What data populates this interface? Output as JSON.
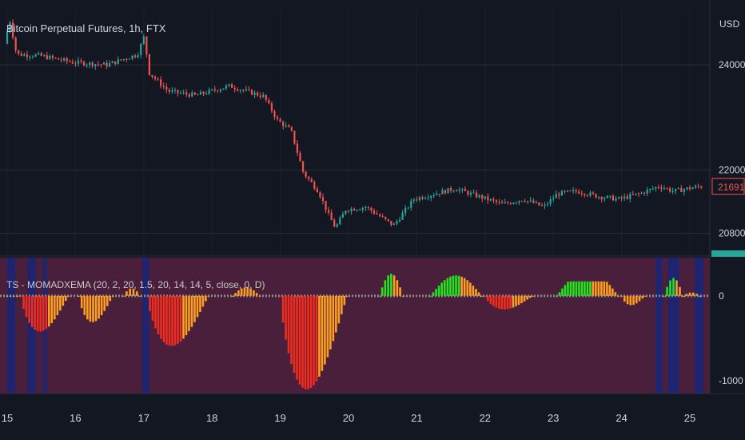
{
  "header": {
    "title": "Bitcoin Perpetual Futures, 1h, FTX",
    "currency": "USD"
  },
  "indicator": {
    "label": "TS - MOMADXEMA (20, 2, 20, 1.5, 20, 14, 14, 5, close, 0, D)"
  },
  "colors": {
    "background": "#131722",
    "up_candle": "#26a69a",
    "down_candle": "#ef5350",
    "price_marker": "#ef5350",
    "hist_strong_up": "#22e51c",
    "hist_weak_up": "#ff9f1c",
    "hist_strong_down": "#f22c1d",
    "hist_weak_down": "#f7931a",
    "panel_bg": "#4a1f3b",
    "panel_band": "#1f2470",
    "zero_line": "#8a8a8a"
  },
  "chart_data": [
    {
      "type": "candlestick",
      "title": "Bitcoin Perpetual Futures, 1h, FTX",
      "unit": "USD",
      "x_ticks": [
        "15",
        "16",
        "17",
        "18",
        "19",
        "20",
        "21",
        "22",
        "23",
        "24",
        "25"
      ],
      "y_ticks": [
        "24000",
        "22000",
        "20800"
      ],
      "ylim": [
        20400,
        25050
      ],
      "last_price": "21691",
      "close_path": [
        {
          "day": 15.0,
          "price": 24400
        },
        {
          "day": 15.08,
          "price": 24850
        },
        {
          "day": 15.18,
          "price": 24200
        },
        {
          "day": 15.5,
          "price": 24180
        },
        {
          "day": 16.0,
          "price": 24050
        },
        {
          "day": 16.5,
          "price": 24000
        },
        {
          "day": 16.95,
          "price": 24200
        },
        {
          "day": 17.05,
          "price": 24550
        },
        {
          "day": 17.12,
          "price": 23850
        },
        {
          "day": 17.4,
          "price": 23500
        },
        {
          "day": 17.8,
          "price": 23420
        },
        {
          "day": 18.3,
          "price": 23600
        },
        {
          "day": 18.8,
          "price": 23400
        },
        {
          "day": 19.0,
          "price": 22950
        },
        {
          "day": 19.2,
          "price": 22750
        },
        {
          "day": 19.38,
          "price": 21950
        },
        {
          "day": 19.6,
          "price": 21600
        },
        {
          "day": 19.75,
          "price": 21150
        },
        {
          "day": 19.85,
          "price": 20900
        },
        {
          "day": 20.0,
          "price": 21250
        },
        {
          "day": 20.3,
          "price": 21300
        },
        {
          "day": 20.7,
          "price": 20950
        },
        {
          "day": 21.0,
          "price": 21450
        },
        {
          "day": 21.3,
          "price": 21550
        },
        {
          "day": 21.6,
          "price": 21650
        },
        {
          "day": 22.0,
          "price": 21480
        },
        {
          "day": 22.3,
          "price": 21350
        },
        {
          "day": 22.6,
          "price": 21450
        },
        {
          "day": 22.9,
          "price": 21300
        },
        {
          "day": 23.1,
          "price": 21550
        },
        {
          "day": 23.4,
          "price": 21600
        },
        {
          "day": 23.7,
          "price": 21500
        },
        {
          "day": 24.0,
          "price": 21450
        },
        {
          "day": 24.3,
          "price": 21550
        },
        {
          "day": 24.6,
          "price": 21700
        },
        {
          "day": 24.8,
          "price": 21600
        },
        {
          "day": 25.0,
          "price": 21650
        },
        {
          "day": 25.2,
          "price": 21691
        }
      ]
    },
    {
      "type": "histogram",
      "title": "TS - MOMADXEMA (20, 2, 20, 1.5, 20, 14, 14, 5, close, 0, D)",
      "y_ticks": [
        "0",
        "-1000"
      ],
      "ylim": [
        -1150,
        450
      ],
      "segments": [
        {
          "start": 15.0,
          "end": 15.2,
          "peak": 0,
          "shape": "flat",
          "color": "#ff9f1c"
        },
        {
          "start": 15.2,
          "end": 15.9,
          "peak": -420,
          "shape": "trough",
          "color": "#f22c1d",
          "fade_color": "#ff9f1c"
        },
        {
          "start": 16.05,
          "end": 16.55,
          "peak": -310,
          "shape": "trough",
          "color": "#ff9f1c"
        },
        {
          "start": 16.7,
          "end": 16.95,
          "peak": 90,
          "shape": "hump",
          "color": "#ff9f1c"
        },
        {
          "start": 17.05,
          "end": 17.95,
          "peak": -590,
          "shape": "trough",
          "color": "#f22c1d",
          "fade_color": "#ff9f1c"
        },
        {
          "start": 18.3,
          "end": 18.7,
          "peak": 100,
          "shape": "hump",
          "color": "#ff9f1c"
        },
        {
          "start": 19.0,
          "end": 19.98,
          "peak": -1100,
          "shape": "trough",
          "color": "#f22c1d",
          "fade_color": "#ff9f1c"
        },
        {
          "start": 20.45,
          "end": 20.8,
          "peak": 260,
          "shape": "hump",
          "color": "#22e51c",
          "fade_color": "#ff9f1c"
        },
        {
          "start": 21.2,
          "end": 21.95,
          "peak": 240,
          "shape": "hump",
          "color": "#22e51c",
          "fade_color": "#ff9f1c"
        },
        {
          "start": 22.0,
          "end": 22.7,
          "peak": -160,
          "shape": "trough",
          "color": "#f22c1d",
          "fade_color": "#ff9f1c"
        },
        {
          "start": 23.05,
          "end": 23.95,
          "peak": 170,
          "shape": "plateau",
          "color": "#22e51c",
          "fade_color": "#ff9f1c"
        },
        {
          "start": 24.0,
          "end": 24.35,
          "peak": -110,
          "shape": "trough",
          "color": "#ff9f1c"
        },
        {
          "start": 24.62,
          "end": 24.9,
          "peak": 210,
          "shape": "hump",
          "color": "#22e51c",
          "fade_color": "#ff9f1c"
        },
        {
          "start": 24.9,
          "end": 25.15,
          "peak": 40,
          "shape": "hump",
          "color": "#ff9f1c"
        }
      ],
      "bands": [
        {
          "start": 15.0,
          "end": 15.12
        },
        {
          "start": 15.3,
          "end": 15.42
        },
        {
          "start": 15.52,
          "end": 15.58
        },
        {
          "start": 16.98,
          "end": 17.08
        },
        {
          "start": 24.5,
          "end": 24.6
        },
        {
          "start": 24.68,
          "end": 24.84
        },
        {
          "start": 25.07,
          "end": 25.2
        }
      ]
    }
  ]
}
